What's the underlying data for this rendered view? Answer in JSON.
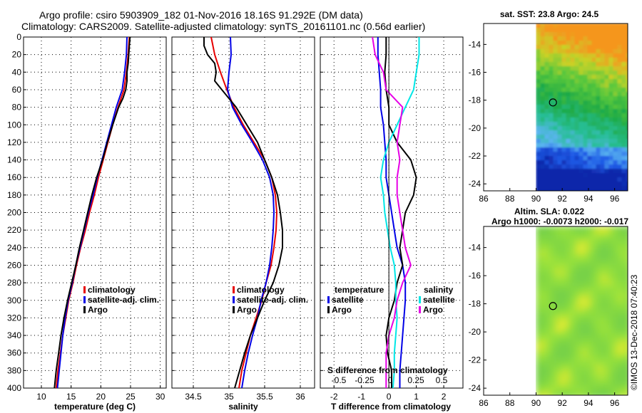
{
  "header": {
    "line1": "Argo profile: csiro 5903909_182 01-Nov-2016 18.16S 91.292E (DM data)",
    "line2": "Climatology: CARS2009. Satellite-adjusted climatology: synTS_20161101.nc (0.56d earlier)"
  },
  "colors": {
    "climatology": "#e60000",
    "satellite": "#0000e6",
    "argo": "#000000",
    "s_satellite": "#00e6e6",
    "s_argo": "#e600e6"
  },
  "chart_data": [
    {
      "type": "line",
      "id": "temperature",
      "xlabel": "temperature (deg C)",
      "ylabel": "",
      "xlim": [
        7,
        31
      ],
      "ylim": [
        400,
        0
      ],
      "xticks": [
        10,
        15,
        20,
        25,
        30
      ],
      "yticks": [
        0,
        20,
        40,
        60,
        80,
        100,
        120,
        140,
        160,
        180,
        200,
        220,
        240,
        260,
        280,
        300,
        320,
        340,
        360,
        380,
        400
      ],
      "legend": [
        "climatology",
        "satellite-adj. clim.",
        "Argo"
      ],
      "series": [
        {
          "name": "climatology",
          "color": "#e60000",
          "depth": [
            0,
            20,
            40,
            60,
            80,
            100,
            120,
            140,
            160,
            180,
            200,
            220,
            240,
            260,
            280,
            300,
            320,
            340,
            360,
            380,
            400
          ],
          "values": [
            24.8,
            24.6,
            24.3,
            23.9,
            22.9,
            22.0,
            21.2,
            20.4,
            19.6,
            18.9,
            18.1,
            17.4,
            16.6,
            15.9,
            15.3,
            14.6,
            14.1,
            13.6,
            13.2,
            12.8,
            12.5
          ]
        },
        {
          "name": "satellite-adj. clim.",
          "color": "#0000e6",
          "depth": [
            0,
            20,
            40,
            60,
            80,
            100,
            120,
            140,
            160,
            180,
            200,
            220,
            240,
            260,
            280,
            300,
            320,
            340,
            360,
            380,
            400
          ],
          "values": [
            24.4,
            24.3,
            24.0,
            23.6,
            22.6,
            21.8,
            21.0,
            20.2,
            19.4,
            18.7,
            17.9,
            17.2,
            16.5,
            15.8,
            15.2,
            14.5,
            14.0,
            13.6,
            13.3,
            13.0,
            12.7
          ]
        },
        {
          "name": "Argo",
          "color": "#000000",
          "depth": [
            0,
            10,
            20,
            30,
            40,
            50,
            60,
            70,
            80,
            100,
            120,
            140,
            160,
            180,
            200,
            220,
            240,
            260,
            280,
            300,
            320,
            340,
            360,
            380,
            400
          ],
          "values": [
            24.9,
            24.8,
            24.7,
            24.6,
            24.4,
            24.4,
            24.2,
            23.7,
            23.0,
            22.0,
            21.1,
            20.3,
            19.3,
            18.5,
            17.8,
            17.1,
            16.4,
            15.8,
            15.1,
            14.4,
            13.8,
            13.3,
            12.9,
            12.5,
            12.2
          ]
        }
      ]
    },
    {
      "type": "line",
      "id": "salinity",
      "xlabel": "salinity",
      "ylabel": "",
      "xlim": [
        34.2,
        36.2
      ],
      "ylim": [
        400,
        0
      ],
      "xticks": [
        34.5,
        35,
        35.5,
        36
      ],
      "legend": [
        "climatology",
        "satellite-adj. clim.",
        "Argo"
      ],
      "series": [
        {
          "name": "climatology",
          "color": "#e60000",
          "depth": [
            0,
            20,
            40,
            60,
            80,
            100,
            120,
            140,
            160,
            180,
            200,
            220,
            240,
            260,
            280,
            300,
            320,
            340,
            360,
            380,
            400
          ],
          "values": [
            34.75,
            34.8,
            34.88,
            34.97,
            35.07,
            35.2,
            35.35,
            35.5,
            35.6,
            35.65,
            35.67,
            35.66,
            35.63,
            35.59,
            35.52,
            35.46,
            35.38,
            35.3,
            35.24,
            35.18,
            35.14
          ]
        },
        {
          "name": "satellite-adj. clim.",
          "color": "#0000e6",
          "depth": [
            0,
            20,
            40,
            60,
            80,
            100,
            120,
            140,
            160,
            180,
            200,
            220,
            240,
            260,
            280,
            300,
            320,
            340,
            360,
            380,
            400
          ],
          "values": [
            35.02,
            35.03,
            35.0,
            34.98,
            35.05,
            35.18,
            35.33,
            35.47,
            35.57,
            35.62,
            35.63,
            35.62,
            35.6,
            35.57,
            35.52,
            35.45,
            35.4,
            35.33,
            35.27,
            35.22,
            35.18
          ]
        },
        {
          "name": "Argo",
          "color": "#000000",
          "depth": [
            0,
            10,
            20,
            30,
            40,
            50,
            60,
            70,
            80,
            100,
            120,
            140,
            160,
            180,
            200,
            220,
            240,
            260,
            280,
            300,
            320,
            340,
            360,
            380,
            400
          ],
          "values": [
            34.65,
            34.65,
            34.7,
            34.8,
            34.82,
            34.8,
            34.9,
            35.0,
            35.1,
            35.25,
            35.4,
            35.5,
            35.6,
            35.68,
            35.72,
            35.75,
            35.75,
            35.7,
            35.62,
            35.5,
            35.4,
            35.3,
            35.22,
            35.15,
            35.08
          ]
        }
      ]
    },
    {
      "type": "line",
      "id": "difference",
      "xlabel": "T difference from climatology",
      "xlim": [
        -2.5,
        2.7
      ],
      "ylim": [
        400,
        0
      ],
      "xticks": [
        -2,
        -1,
        0,
        1,
        2
      ],
      "secondary_xlabel": "S difference from climatology",
      "secondary_xticks": [
        "-0.5",
        "-0.25",
        "0",
        "0.25",
        "0.5"
      ],
      "legend_left_title": "temperature",
      "legend_left": [
        "satellite",
        "Argo"
      ],
      "legend_right_title": "salinity",
      "legend_right": [
        "satellite",
        "Argo"
      ],
      "series": [
        {
          "name": "T satellite",
          "color": "#0000e6",
          "depth": [
            0,
            20,
            40,
            60,
            80,
            100,
            120,
            140,
            160,
            180,
            200,
            220,
            240,
            260,
            280,
            300,
            320,
            340,
            360,
            380,
            400
          ],
          "values": [
            -0.4,
            -0.4,
            -0.35,
            -0.3,
            -0.3,
            -0.2,
            -0.15,
            -0.1,
            -0.1,
            0.0,
            0.1,
            0.2,
            0.3,
            0.5,
            0.6,
            0.6,
            0.55,
            0.5,
            0.45,
            0.4,
            0.4
          ]
        },
        {
          "name": "T Argo",
          "color": "#000000",
          "depth": [
            0,
            20,
            40,
            60,
            80,
            100,
            120,
            140,
            160,
            180,
            200,
            220,
            240,
            260,
            280,
            300,
            320,
            340,
            360,
            380,
            400
          ],
          "values": [
            -0.1,
            -0.1,
            -0.15,
            -0.1,
            0.0,
            0.0,
            0.3,
            0.8,
            1.0,
            0.9,
            0.6,
            0.5,
            0.4,
            0.5,
            0.3,
            0.2,
            0.0,
            -0.1,
            -0.05,
            0.1,
            0.1
          ]
        },
        {
          "name": "S satellite",
          "color": "#00e6e6",
          "depth": [
            0,
            20,
            40,
            60,
            80,
            100,
            120,
            140,
            160,
            180,
            200,
            220,
            240,
            260,
            280,
            300,
            320,
            340,
            360,
            380,
            400
          ],
          "values": [
            1.1,
            1.1,
            1.0,
            0.9,
            0.6,
            0.3,
            0.0,
            -0.2,
            -0.3,
            -0.2,
            -0.15,
            -0.05,
            0.05,
            0.2,
            0.25,
            0.25,
            0.3,
            0.25,
            0.2,
            0.2,
            0.15
          ]
        },
        {
          "name": "S Argo",
          "color": "#e600e6",
          "depth": [
            0,
            20,
            40,
            60,
            80,
            100,
            120,
            140,
            160,
            180,
            200,
            220,
            240,
            260,
            280,
            300,
            320,
            340,
            360,
            380,
            400
          ],
          "values": [
            -0.6,
            -0.5,
            -0.2,
            -0.1,
            0.5,
            0.4,
            0.3,
            0.4,
            0.3,
            0.3,
            0.4,
            0.5,
            0.6,
            0.8,
            0.5,
            0.3,
            0.2,
            0.0,
            -0.1,
            -0.1,
            -0.1
          ]
        }
      ]
    },
    {
      "type": "heatmap",
      "id": "sst_map",
      "title": "sat. SST: 23.8 Argo: 24.5",
      "xlim": [
        86,
        97
      ],
      "ylim": [
        -24.5,
        -12.5
      ],
      "xticks": [
        86,
        88,
        90,
        92,
        94,
        96
      ],
      "yticks": [
        -14,
        -16,
        -18,
        -20,
        -22,
        -24
      ],
      "data_lon_start": 90,
      "marker": {
        "lon": 91.292,
        "lat": -18.16
      }
    },
    {
      "type": "heatmap",
      "id": "sla_map",
      "title": "Altim. SLA: 0.022",
      "subtitle": "Argo h1000: -0.0073 h2000: -0.017",
      "xlim": [
        86,
        97
      ],
      "ylim": [
        -24.5,
        -12.5
      ],
      "xticks": [
        86,
        88,
        90,
        92,
        94,
        96
      ],
      "yticks": [
        -14,
        -16,
        -18,
        -20,
        -22,
        -24
      ],
      "data_lon_start": 90,
      "marker": {
        "lon": 91.292,
        "lat": -18.16
      }
    }
  ],
  "credit": "©IMOS 13-Dec-2018 07:40:23"
}
